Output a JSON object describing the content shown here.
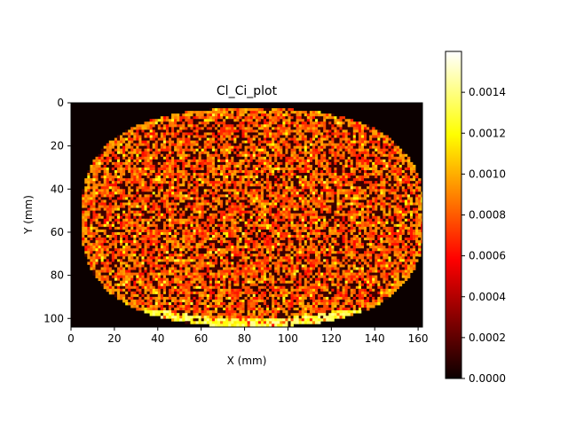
{
  "chart_data": {
    "type": "heatmap",
    "title": "Cl_Ci_plot",
    "xlabel": "X (mm)",
    "ylabel": "Y (mm)",
    "xlim": [
      0,
      162
    ],
    "ylim": [
      104,
      0
    ],
    "y_inverted": true,
    "x_ticks": [
      "0",
      "20",
      "40",
      "60",
      "80",
      "100",
      "120",
      "140",
      "160"
    ],
    "y_ticks": [
      "0",
      "20",
      "40",
      "60",
      "80",
      "100"
    ],
    "colormap": "hot",
    "colorbar": {
      "range": [
        0,
        0.0016
      ],
      "ticks": [
        "0.0000",
        "0.0002",
        "0.0004",
        "0.0006",
        "0.0008",
        "0.0010",
        "0.0012",
        "0.0014"
      ]
    },
    "region": {
      "shape": "rounded oval sample cross-section",
      "x_extent": [
        4,
        162
      ],
      "y_extent": [
        2,
        103
      ],
      "typical_value": 0.0008,
      "value_range": [
        0.0,
        0.0015
      ],
      "bright_edge": "bottom boundary near y=100 (~0.0012-0.0014)"
    },
    "background_value": 0.0,
    "grid": false
  }
}
